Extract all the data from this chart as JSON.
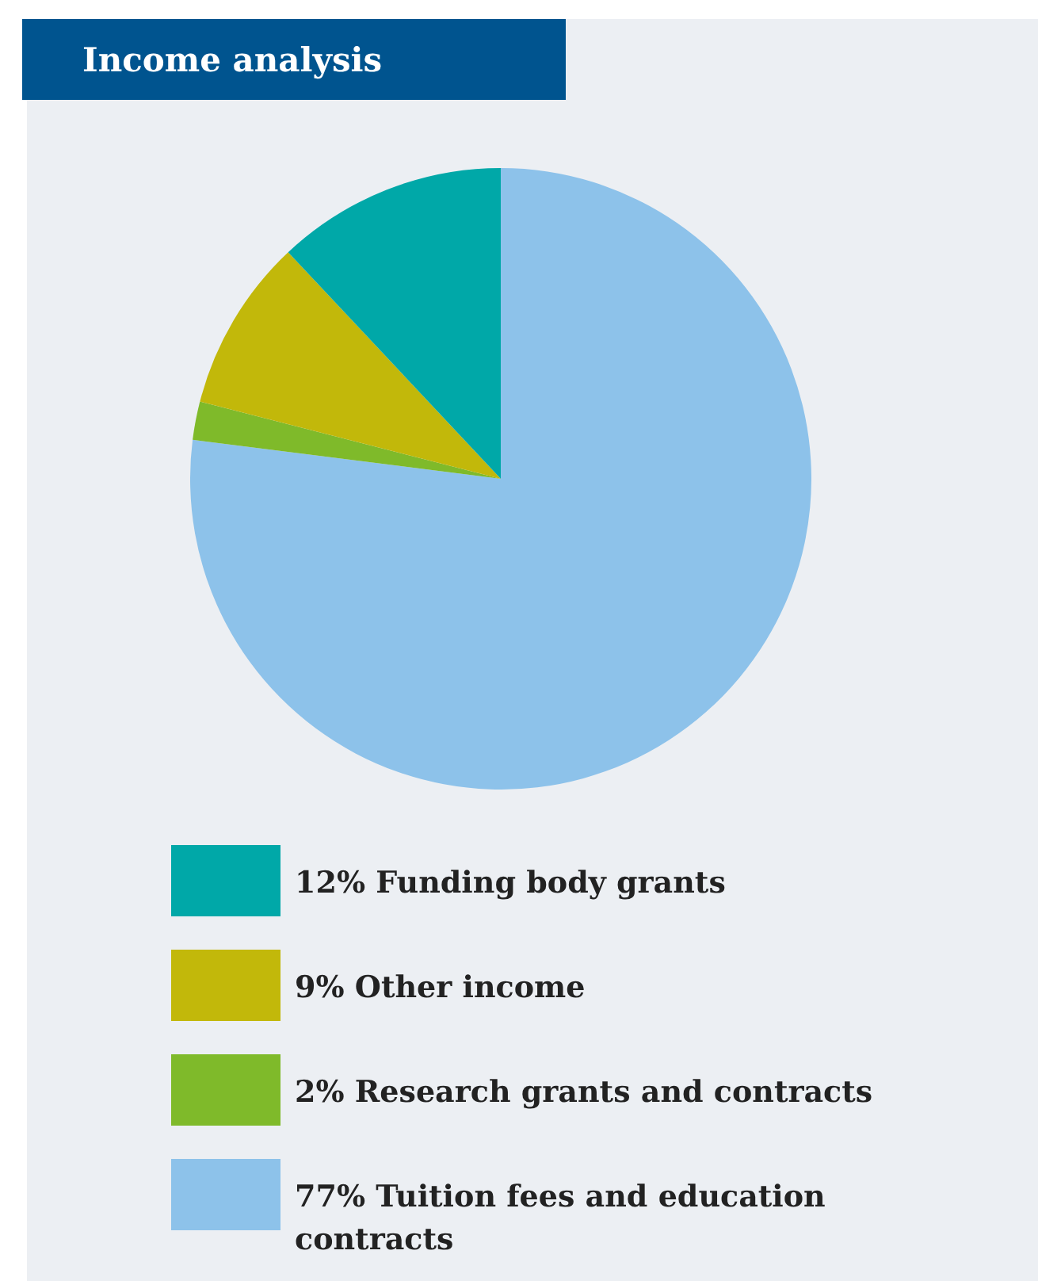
{
  "chart_data": {
    "type": "pie",
    "title": "Income analysis",
    "categories": [
      "Funding body grants",
      "Other income",
      "Research grants and contracts",
      "Tuition fees and education contracts"
    ],
    "values": [
      12,
      9,
      2,
      77
    ],
    "value_labels": [
      "12%",
      "9%",
      "2%",
      "77%"
    ],
    "colors": [
      "#00a8a8",
      "#c2b80a",
      "#7fba2a",
      "#8dc2ea"
    ],
    "legend": "bottom"
  }
}
